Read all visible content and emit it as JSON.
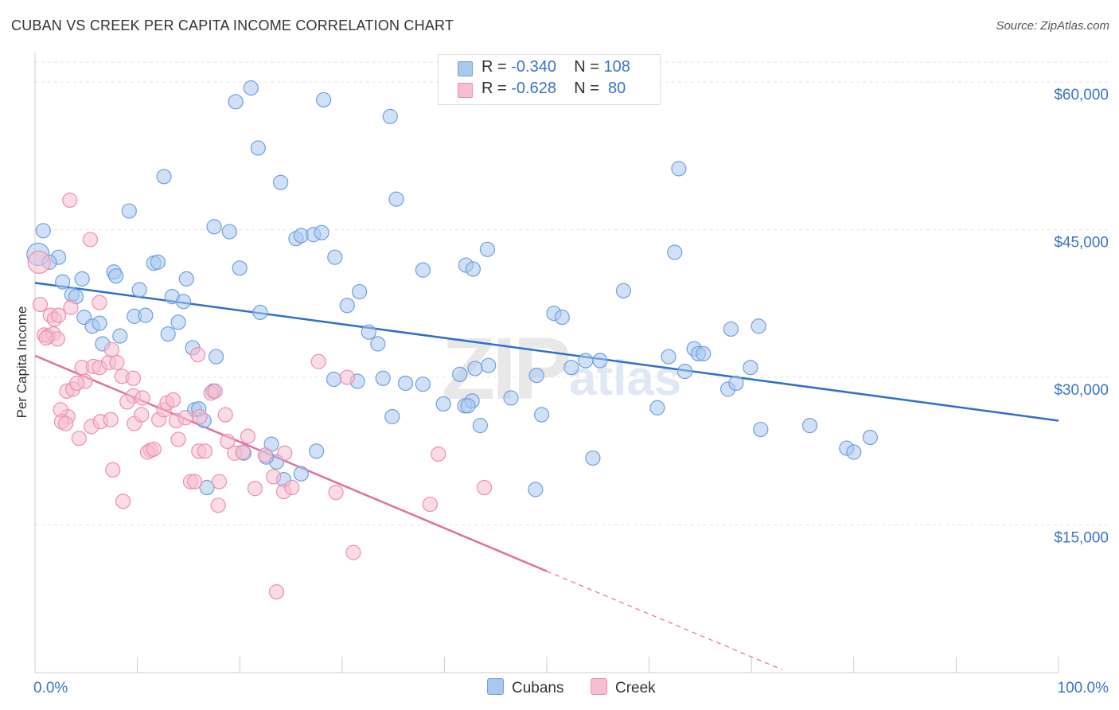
{
  "title": "CUBAN VS CREEK PER CAPITA INCOME CORRELATION CHART",
  "source": "Source: ZipAtlas.com",
  "watermark": {
    "zip": "ZIP",
    "atlas": "atlas"
  },
  "legend_top": [
    {
      "r_label": "R =",
      "r_value": "-0.340",
      "n_label": "N =",
      "n_value": "108",
      "color": "#a9c8f0"
    },
    {
      "r_label": "R =",
      "r_value": "-0.628",
      "n_label": "N =",
      "n_value": " 80",
      "color": "#f5b8cb"
    }
  ],
  "legend_bottom": [
    {
      "label": "Cubans",
      "color": "#a9c8f0"
    },
    {
      "label": "Creek",
      "color": "#f5b8cb"
    }
  ],
  "colors": {
    "cubans_fill": "#a9c8f0",
    "cubans_stroke": "#6fa0de",
    "cubans_line": "#2f6fcc",
    "creek_fill": "#f7bdd0",
    "creek_stroke": "#ec8fb0",
    "creek_line": "#e0709a",
    "tick_label": "#3a74c9",
    "grid": "#e3e3e3"
  },
  "chart_data": {
    "type": "scatter",
    "xlabel": "",
    "ylabel": "Per Capita Income",
    "x_tick_labels": [
      "0.0%",
      "100.0%"
    ],
    "xlim": [
      0,
      100
    ],
    "ylim": [
      0,
      63000
    ],
    "y_ticks": [
      15000,
      30000,
      45000,
      60000
    ],
    "y_tick_labels": [
      "$15,000",
      "$30,000",
      "$45,000",
      "$60,000"
    ],
    "grid": "horizontal-dashed",
    "legend_position": "top-center",
    "series": [
      {
        "name": "Cubans",
        "trend": {
          "x0": 0,
          "y0": 39600,
          "x1": 100,
          "y1": 25600
        },
        "points": [
          [
            0.3,
            42500
          ],
          [
            0.8,
            44900
          ],
          [
            2.3,
            42200
          ],
          [
            1.4,
            41700
          ],
          [
            4.6,
            40000
          ],
          [
            2.7,
            39700
          ],
          [
            3.6,
            38400
          ],
          [
            4.0,
            38200
          ],
          [
            7.7,
            40700
          ],
          [
            7.9,
            40300
          ],
          [
            9.7,
            36200
          ],
          [
            10.2,
            38900
          ],
          [
            10.8,
            36300
          ],
          [
            11.6,
            41600
          ],
          [
            12.0,
            41700
          ],
          [
            13.4,
            38200
          ],
          [
            14.0,
            35600
          ],
          [
            14.5,
            37700
          ],
          [
            14.8,
            40000
          ],
          [
            12.6,
            50400
          ],
          [
            9.2,
            46900
          ],
          [
            4.8,
            36100
          ],
          [
            5.6,
            35200
          ],
          [
            6.3,
            35500
          ],
          [
            6.6,
            33400
          ],
          [
            8.3,
            34200
          ],
          [
            13.0,
            34400
          ],
          [
            15.4,
            33000
          ],
          [
            17.7,
            32100
          ],
          [
            17.5,
            45300
          ],
          [
            19.0,
            44800
          ],
          [
            20.0,
            41100
          ],
          [
            19.6,
            58000
          ],
          [
            21.1,
            59400
          ],
          [
            21.8,
            53300
          ],
          [
            22.0,
            36600
          ],
          [
            24.0,
            49800
          ],
          [
            25.5,
            44100
          ],
          [
            26.0,
            44400
          ],
          [
            27.2,
            44500
          ],
          [
            28.0,
            44700
          ],
          [
            28.2,
            58200
          ],
          [
            29.3,
            42200
          ],
          [
            30.5,
            37300
          ],
          [
            31.7,
            38700
          ],
          [
            32.6,
            34600
          ],
          [
            33.5,
            33400
          ],
          [
            35.3,
            48100
          ],
          [
            34.7,
            56500
          ],
          [
            37.9,
            40900
          ],
          [
            42.1,
            41400
          ],
          [
            42.8,
            41000
          ],
          [
            44.2,
            43000
          ],
          [
            43.0,
            30900
          ],
          [
            41.5,
            30300
          ],
          [
            44.3,
            31200
          ],
          [
            39.9,
            27300
          ],
          [
            42.0,
            27100
          ],
          [
            42.7,
            27600
          ],
          [
            43.5,
            25100
          ],
          [
            46.5,
            27900
          ],
          [
            49.0,
            30200
          ],
          [
            50.7,
            36500
          ],
          [
            51.5,
            36100
          ],
          [
            52.4,
            31000
          ],
          [
            53.8,
            31700
          ],
          [
            55.2,
            31700
          ],
          [
            57.5,
            38800
          ],
          [
            60.8,
            26900
          ],
          [
            61.9,
            32100
          ],
          [
            62.5,
            42700
          ],
          [
            62.9,
            51200
          ],
          [
            64.4,
            32900
          ],
          [
            64.8,
            32400
          ],
          [
            65.3,
            32400
          ],
          [
            67.7,
            28800
          ],
          [
            68.5,
            29400
          ],
          [
            68.0,
            34900
          ],
          [
            69.9,
            31000
          ],
          [
            70.7,
            35200
          ],
          [
            70.9,
            24700
          ],
          [
            75.7,
            25100
          ],
          [
            79.3,
            22800
          ],
          [
            80.0,
            22400
          ],
          [
            81.6,
            23900
          ],
          [
            54.5,
            21800
          ],
          [
            49.5,
            26200
          ],
          [
            37.9,
            29300
          ],
          [
            36.2,
            29400
          ],
          [
            34.0,
            29900
          ],
          [
            31.5,
            29600
          ],
          [
            29.2,
            29800
          ],
          [
            34.9,
            26000
          ],
          [
            27.5,
            22500
          ],
          [
            26.0,
            20200
          ],
          [
            23.6,
            21400
          ],
          [
            22.6,
            21900
          ],
          [
            23.1,
            23200
          ],
          [
            20.4,
            22300
          ],
          [
            17.4,
            28600
          ],
          [
            15.6,
            26700
          ],
          [
            16.5,
            25600
          ],
          [
            16.0,
            26800
          ],
          [
            16.8,
            18800
          ],
          [
            24.3,
            19600
          ],
          [
            48.9,
            18600
          ],
          [
            42.3,
            27100
          ],
          [
            63.5,
            30600
          ]
        ]
      },
      {
        "name": "Creek",
        "trend": {
          "x0": 0,
          "y0": 32200,
          "x1": 50,
          "y1": 10300,
          "dash_to_x": 73,
          "dash_to_y": 300
        },
        "points": [
          [
            0.4,
            41700
          ],
          [
            0.5,
            37400
          ],
          [
            1.5,
            36300
          ],
          [
            1.9,
            35900
          ],
          [
            2.3,
            36300
          ],
          [
            0.9,
            34300
          ],
          [
            1.3,
            34200
          ],
          [
            1.8,
            34400
          ],
          [
            2.2,
            33900
          ],
          [
            1.1,
            34000
          ],
          [
            3.5,
            37100
          ],
          [
            6.3,
            37600
          ],
          [
            3.4,
            48000
          ],
          [
            5.4,
            44000
          ],
          [
            4.6,
            31000
          ],
          [
            5.7,
            31100
          ],
          [
            6.3,
            31000
          ],
          [
            7.2,
            31500
          ],
          [
            7.5,
            32800
          ],
          [
            8.0,
            31500
          ],
          [
            8.5,
            30100
          ],
          [
            9.6,
            29900
          ],
          [
            9.6,
            28100
          ],
          [
            4.9,
            29600
          ],
          [
            3.1,
            28600
          ],
          [
            3.7,
            28800
          ],
          [
            4.1,
            29400
          ],
          [
            3.2,
            26000
          ],
          [
            2.5,
            26700
          ],
          [
            2.6,
            25500
          ],
          [
            3.0,
            25300
          ],
          [
            4.3,
            23800
          ],
          [
            5.5,
            25000
          ],
          [
            6.4,
            25500
          ],
          [
            7.4,
            25700
          ],
          [
            9.0,
            27500
          ],
          [
            9.7,
            25300
          ],
          [
            10.5,
            27900
          ],
          [
            10.4,
            26200
          ],
          [
            11.3,
            22600
          ],
          [
            11.0,
            22400
          ],
          [
            11.6,
            22700
          ],
          [
            12.1,
            25700
          ],
          [
            12.6,
            26700
          ],
          [
            12.9,
            27400
          ],
          [
            13.5,
            27700
          ],
          [
            13.8,
            25600
          ],
          [
            14.0,
            23700
          ],
          [
            14.7,
            25900
          ],
          [
            15.2,
            19400
          ],
          [
            15.6,
            19400
          ],
          [
            15.9,
            32300
          ],
          [
            16.1,
            26000
          ],
          [
            16.0,
            22500
          ],
          [
            16.6,
            22500
          ],
          [
            17.2,
            28400
          ],
          [
            17.6,
            28600
          ],
          [
            17.9,
            17000
          ],
          [
            18.0,
            19400
          ],
          [
            18.6,
            26200
          ],
          [
            18.8,
            23500
          ],
          [
            19.5,
            22300
          ],
          [
            20.3,
            22400
          ],
          [
            20.8,
            24000
          ],
          [
            21.5,
            18700
          ],
          [
            22.5,
            22100
          ],
          [
            23.3,
            19900
          ],
          [
            24.4,
            22300
          ],
          [
            24.3,
            18400
          ],
          [
            25.1,
            18800
          ],
          [
            27.7,
            31600
          ],
          [
            29.4,
            18300
          ],
          [
            30.5,
            30000
          ],
          [
            31.1,
            12200
          ],
          [
            39.4,
            22200
          ],
          [
            38.6,
            17100
          ],
          [
            43.9,
            18800
          ],
          [
            23.6,
            8200
          ],
          [
            7.6,
            20600
          ],
          [
            8.6,
            17400
          ]
        ]
      }
    ]
  }
}
